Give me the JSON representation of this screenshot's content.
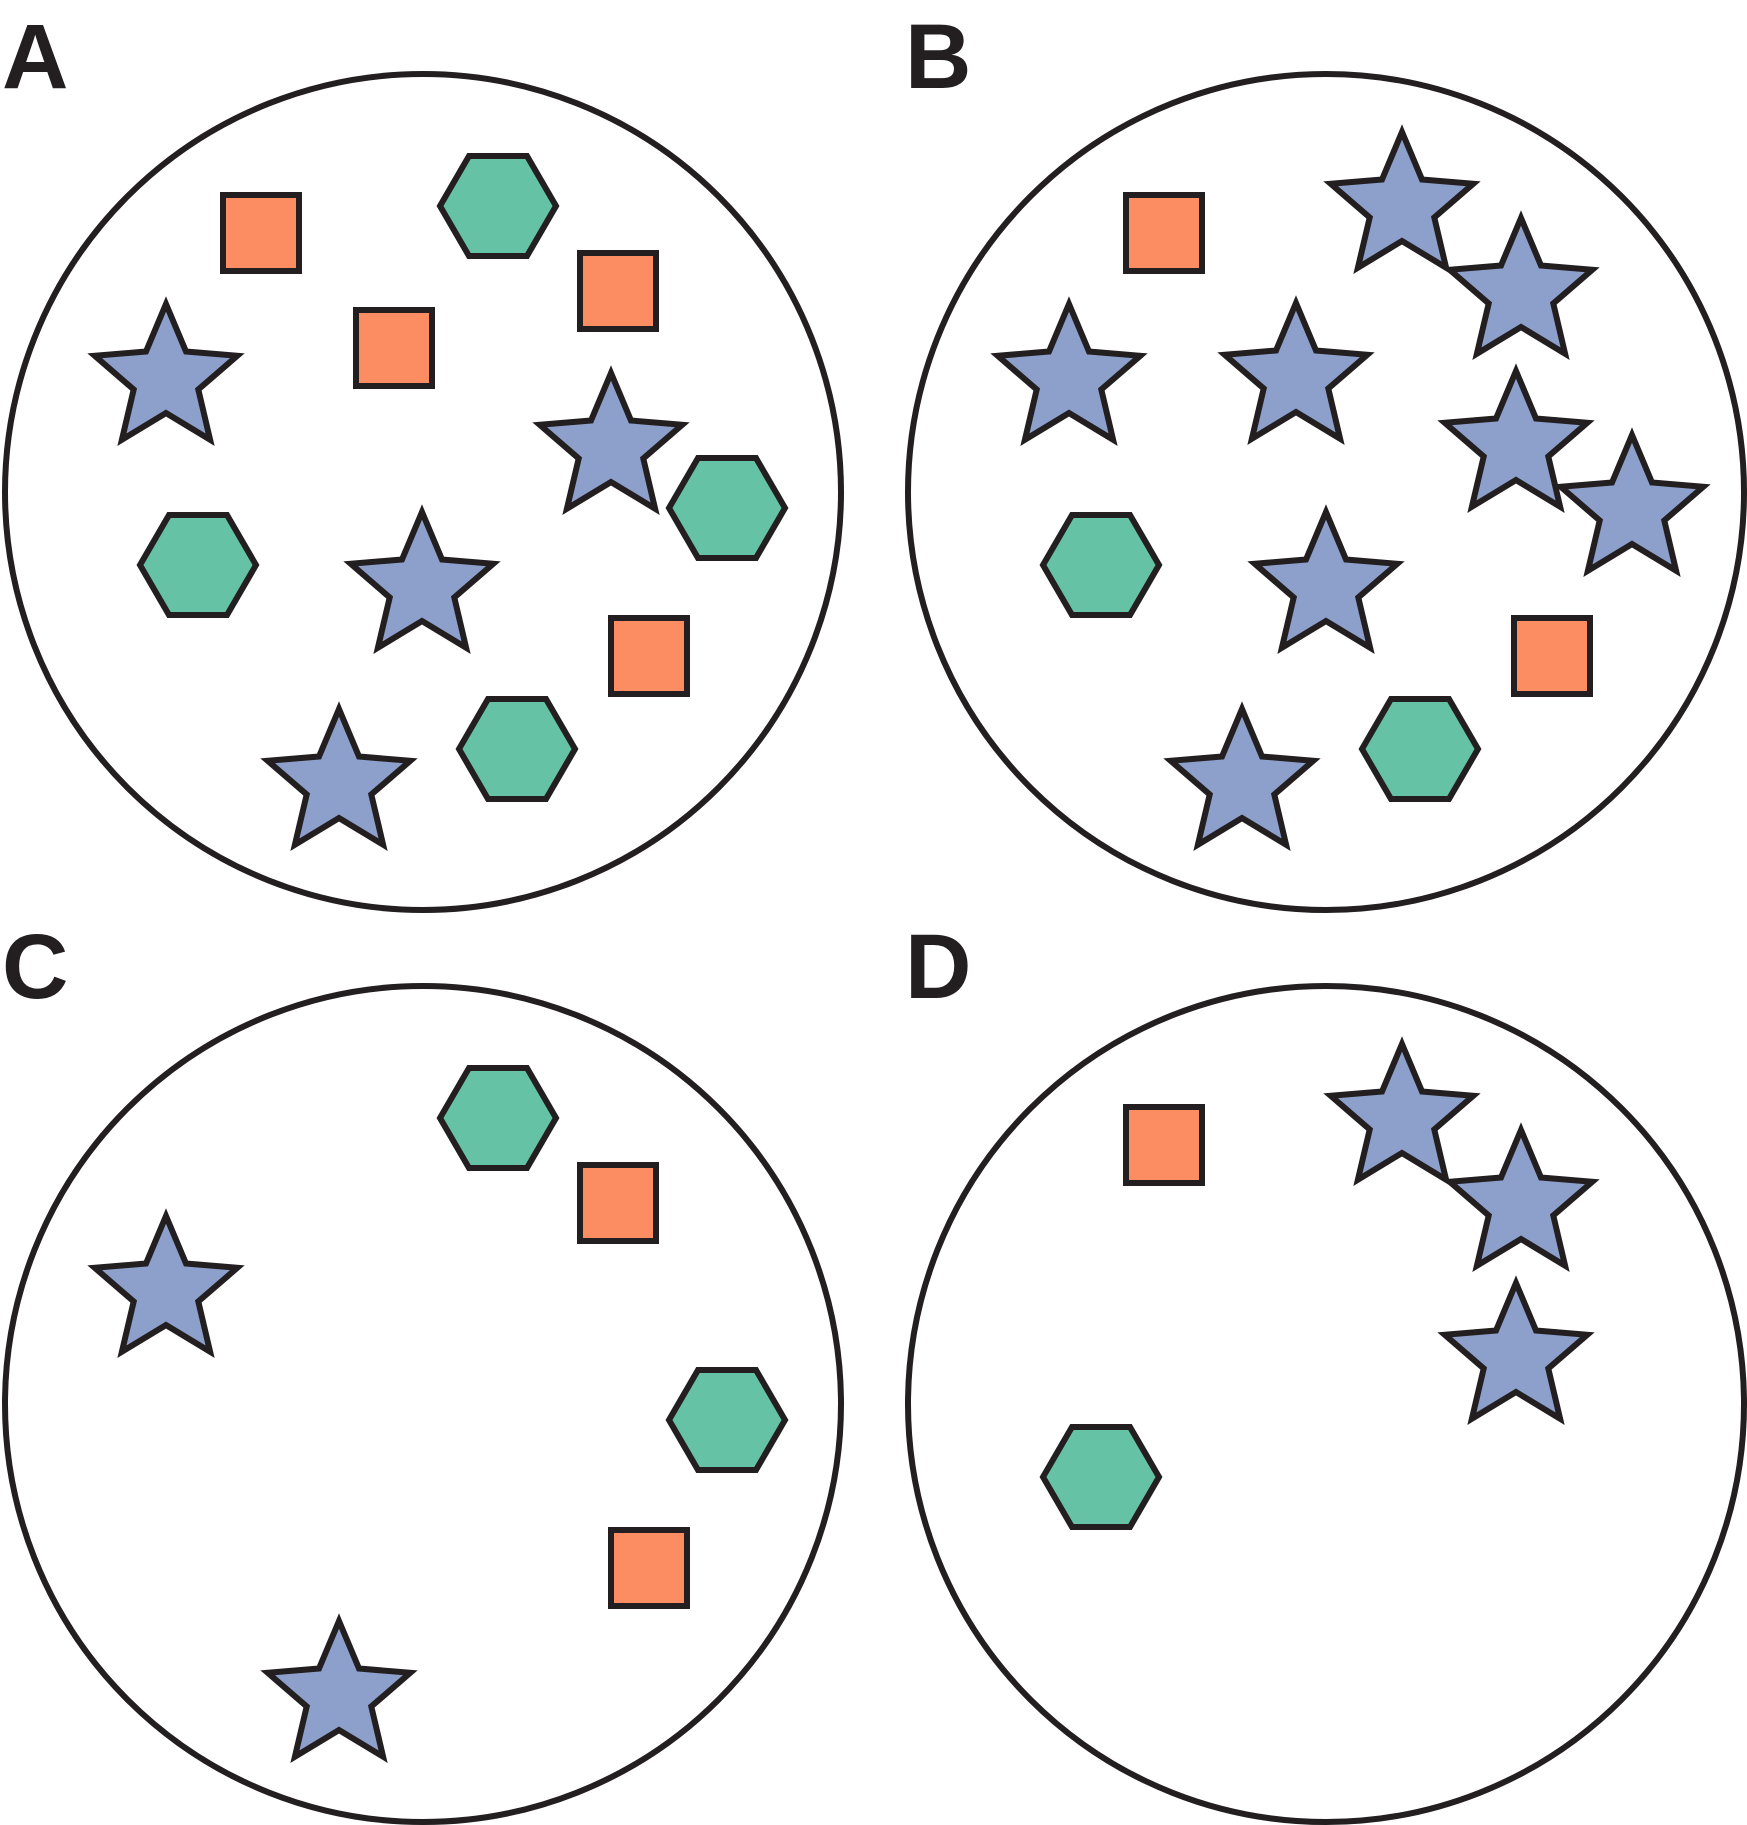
{
  "colors": {
    "stroke": "#231f20",
    "square": "#fc8d62",
    "hexagon": "#66c2a5",
    "star": "#8da0cb",
    "background": "#ffffff"
  },
  "panels": [
    {
      "label": "A",
      "items": [
        {
          "shape": "square"
        },
        {
          "shape": "hexagon"
        },
        {
          "shape": "square"
        },
        {
          "shape": "square"
        },
        {
          "shape": "star"
        },
        {
          "shape": "star"
        },
        {
          "shape": "hexagon"
        },
        {
          "shape": "hexagon"
        },
        {
          "shape": "star"
        },
        {
          "shape": "square"
        },
        {
          "shape": "star"
        },
        {
          "shape": "hexagon"
        }
      ]
    },
    {
      "label": "B",
      "items": [
        {
          "shape": "square"
        },
        {
          "shape": "star"
        },
        {
          "shape": "star"
        },
        {
          "shape": "star"
        },
        {
          "shape": "star"
        },
        {
          "shape": "star"
        },
        {
          "shape": "star"
        },
        {
          "shape": "hexagon"
        },
        {
          "shape": "star"
        },
        {
          "shape": "square"
        },
        {
          "shape": "star"
        },
        {
          "shape": "hexagon"
        }
      ]
    },
    {
      "label": "C",
      "items": [
        {
          "shape": "hexagon"
        },
        {
          "shape": "square"
        },
        {
          "shape": "star"
        },
        {
          "shape": "hexagon"
        },
        {
          "shape": "square"
        },
        {
          "shape": "star"
        }
      ]
    },
    {
      "label": "D",
      "items": [
        {
          "shape": "square"
        },
        {
          "shape": "star"
        },
        {
          "shape": "star"
        },
        {
          "shape": "star"
        },
        {
          "shape": "hexagon"
        }
      ]
    }
  ]
}
